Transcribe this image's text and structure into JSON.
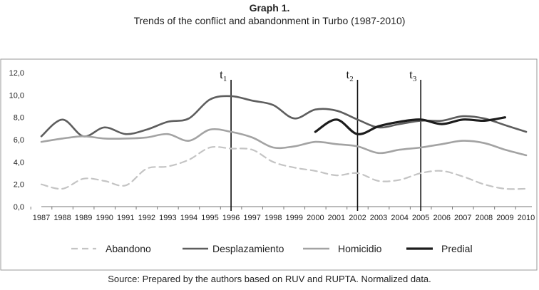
{
  "header": {
    "label": "Graph 1.",
    "title": "Trends of the conflict and abandonment in Turbo (1987-2010)"
  },
  "footer": {
    "source": "Source: Prepared by the authors based on RUV and RUPTA. Normalized data."
  },
  "chart_data": {
    "type": "line",
    "title": "Trends of the conflict and abandonment in Turbo (1987-2010)",
    "xlabel": "",
    "ylabel": "",
    "ylim": [
      0,
      12
    ],
    "yticks": [
      "0,0",
      "2,0",
      "4,0",
      "6,0",
      "8,0",
      "10,0",
      "12,0"
    ],
    "grid": false,
    "legend_position": "bottom",
    "x": [
      1987,
      1988,
      1989,
      1990,
      1991,
      1992,
      1993,
      1994,
      1995,
      1996,
      1997,
      1998,
      1999,
      2000,
      2001,
      2002,
      2003,
      2004,
      2005,
      2006,
      2007,
      2008,
      2009,
      2010
    ],
    "series": [
      {
        "name": "Abandono",
        "style": "dashed",
        "color": "#c4c4c4",
        "values": [
          2.0,
          1.6,
          2.5,
          2.3,
          1.9,
          3.4,
          3.6,
          4.2,
          5.3,
          5.2,
          5.1,
          4.0,
          3.5,
          3.2,
          2.8,
          3.0,
          2.3,
          2.4,
          3.0,
          3.2,
          2.7,
          2.0,
          1.6,
          1.6
        ]
      },
      {
        "name": "Desplazamiento",
        "style": "solid",
        "color": "#5e5e5e",
        "values": [
          6.3,
          7.8,
          6.3,
          7.1,
          6.5,
          6.9,
          7.6,
          7.9,
          9.6,
          9.9,
          9.5,
          9.1,
          7.9,
          8.7,
          8.6,
          7.8,
          7.1,
          7.4,
          7.7,
          7.7,
          8.1,
          7.9,
          7.3,
          6.7
        ]
      },
      {
        "name": "Homicidio",
        "style": "solid",
        "color": "#a3a3a3",
        "values": [
          5.8,
          6.1,
          6.3,
          6.1,
          6.1,
          6.2,
          6.5,
          5.9,
          6.9,
          6.7,
          6.2,
          5.3,
          5.4,
          5.8,
          5.6,
          5.4,
          4.8,
          5.1,
          5.3,
          5.6,
          5.9,
          5.7,
          5.1,
          4.6
        ]
      },
      {
        "name": "Predial",
        "style": "solid",
        "color": "#1c1c1c",
        "x_start": 2000,
        "values": [
          null,
          null,
          null,
          null,
          null,
          null,
          null,
          null,
          null,
          null,
          null,
          null,
          null,
          6.7,
          7.8,
          6.5,
          7.2,
          7.6,
          7.8,
          7.4,
          7.8,
          7.7,
          8.0,
          null
        ]
      }
    ],
    "markers": [
      {
        "label": "t",
        "sub": "1",
        "x": 1996
      },
      {
        "label": "t",
        "sub": "2",
        "x": 2002
      },
      {
        "label": "t",
        "sub": "3",
        "x": 2005
      }
    ]
  }
}
